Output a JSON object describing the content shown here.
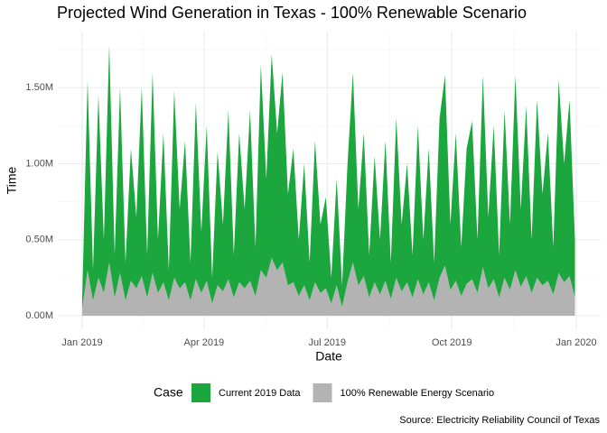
{
  "chart_data": {
    "type": "area",
    "stacked": true,
    "title": "Projected Wind Generation in Texas - 100% Renewable Scenario",
    "x_label": "Date",
    "y_label": "Time",
    "legend_title": "Case",
    "caption": "Source: Electricity Reliability Council of Texas",
    "legend_position": "bottom",
    "grid": true,
    "x": [
      0,
      4,
      8,
      12,
      16,
      20,
      24,
      28,
      32,
      36,
      40,
      44,
      48,
      52,
      56,
      60,
      64,
      68,
      72,
      76,
      80,
      84,
      88,
      92,
      96,
      100,
      104,
      108,
      112,
      116,
      120,
      124,
      128,
      132,
      136,
      140,
      144,
      148,
      152,
      156,
      160,
      164,
      168,
      172,
      176,
      180,
      184,
      188,
      192,
      196,
      200,
      204,
      208,
      212,
      216,
      220,
      224,
      228,
      232,
      236,
      240,
      244,
      248,
      252,
      256,
      260,
      264,
      268,
      272,
      276,
      280,
      284,
      288,
      292,
      296,
      300,
      304,
      308,
      312,
      316,
      320,
      324,
      328,
      332,
      336,
      340,
      344,
      348,
      352,
      356,
      360,
      364
    ],
    "xlim": [
      -18,
      383
    ],
    "xticks": [
      {
        "value": 0,
        "label": "Jan 2019"
      },
      {
        "value": 90,
        "label": "Apr 2019"
      },
      {
        "value": 181,
        "label": "Jul 2019"
      },
      {
        "value": 273,
        "label": "Oct 2019"
      },
      {
        "value": 365,
        "label": "Jan 2020"
      }
    ],
    "ylim": [
      -89000,
      1869000
    ],
    "yticks": [
      {
        "value": 0,
        "label": "0.00M"
      },
      {
        "value": 500000,
        "label": "0.50M"
      },
      {
        "value": 1000000,
        "label": "1.00M"
      },
      {
        "value": 1500000,
        "label": "1.50M"
      }
    ],
    "series": [
      {
        "name": "Current 2019 Data",
        "color": "#1ba73d",
        "values": [
          50000,
          1250000,
          200000,
          1200000,
          350000,
          1430000,
          280000,
          1220000,
          250000,
          870000,
          470000,
          1240000,
          280000,
          1320000,
          350000,
          980000,
          200000,
          1230000,
          520000,
          930000,
          250000,
          1160000,
          400000,
          1020000,
          170000,
          880000,
          440000,
          1110000,
          280000,
          980000,
          520000,
          1120000,
          320000,
          1350000,
          650000,
          1340000,
          900000,
          1250000,
          600000,
          880000,
          370000,
          800000,
          250000,
          930000,
          450000,
          600000,
          170000,
          700000,
          140000,
          780000,
          1250000,
          500000,
          940000,
          280000,
          830000,
          360000,
          920000,
          240000,
          1050000,
          440000,
          780000,
          280000,
          1010000,
          360000,
          880000,
          250000,
          1050000,
          1250000,
          430000,
          970000,
          320000,
          890000,
          1040000,
          350000,
          1260000,
          470000,
          1010000,
          280000,
          1100000,
          430000,
          1280000,
          510000,
          1120000,
          350000,
          1170000,
          600000,
          970000,
          310000,
          1270000,
          780000,
          1160000,
          380000
        ]
      },
      {
        "name": "100% Renewable Energy Scenario",
        "color": "#b3b3b3",
        "values": [
          50000,
          300000,
          100000,
          250000,
          150000,
          350000,
          120000,
          280000,
          100000,
          230000,
          180000,
          260000,
          120000,
          280000,
          150000,
          220000,
          100000,
          250000,
          180000,
          220000,
          100000,
          240000,
          150000,
          230000,
          80000,
          200000,
          160000,
          240000,
          120000,
          220000,
          180000,
          230000,
          130000,
          300000,
          250000,
          380000,
          300000,
          350000,
          200000,
          220000,
          130000,
          200000,
          100000,
          220000,
          150000,
          180000,
          80000,
          200000,
          60000,
          220000,
          350000,
          200000,
          260000,
          120000,
          220000,
          140000,
          230000,
          110000,
          250000,
          160000,
          220000,
          120000,
          240000,
          140000,
          220000,
          100000,
          250000,
          330000,
          170000,
          230000,
          130000,
          210000,
          240000,
          150000,
          320000,
          180000,
          240000,
          120000,
          250000,
          170000,
          300000,
          190000,
          260000,
          150000,
          250000,
          200000,
          230000,
          140000,
          280000,
          220000,
          260000,
          120000
        ]
      }
    ]
  }
}
